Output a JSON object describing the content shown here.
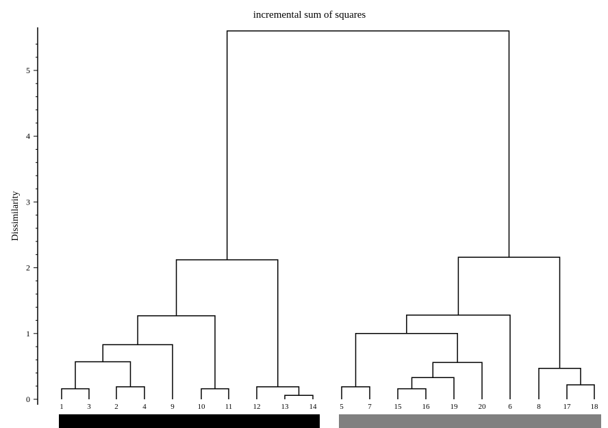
{
  "chart_data": {
    "type": "dendrogram",
    "title": "incremental sum of squares",
    "ylabel": "Dissimilarity",
    "xlabel": "",
    "ylim": [
      0,
      5.6
    ],
    "y_ticks": [
      0,
      1,
      2,
      3,
      4,
      5
    ],
    "grid": false,
    "leaf_order": [
      "1",
      "3",
      "2",
      "4",
      "9",
      "10",
      "11",
      "12",
      "13",
      "14",
      "5",
      "7",
      "15",
      "16",
      "19",
      "20",
      "6",
      "8",
      "17",
      "18"
    ],
    "merges": [
      {
        "id": "A",
        "children": [
          "1",
          "3"
        ],
        "height": 0.16
      },
      {
        "id": "B",
        "children": [
          "2",
          "4"
        ],
        "height": 0.19
      },
      {
        "id": "C",
        "children": [
          "10",
          "11"
        ],
        "height": 0.16
      },
      {
        "id": "D",
        "children": [
          "13",
          "14"
        ],
        "height": 0.06
      },
      {
        "id": "E",
        "children": [
          "12",
          "D"
        ],
        "height": 0.19
      },
      {
        "id": "F",
        "children": [
          "A",
          "B"
        ],
        "height": 0.57
      },
      {
        "id": "G",
        "children": [
          "F",
          "9"
        ],
        "height": 0.83
      },
      {
        "id": "H",
        "children": [
          "G",
          "C"
        ],
        "height": 1.27
      },
      {
        "id": "I",
        "children": [
          "H",
          "E"
        ],
        "height": 2.12
      },
      {
        "id": "J",
        "children": [
          "5",
          "7"
        ],
        "height": 0.19
      },
      {
        "id": "K",
        "children": [
          "15",
          "16"
        ],
        "height": 0.16
      },
      {
        "id": "L",
        "children": [
          "K",
          "19"
        ],
        "height": 0.33
      },
      {
        "id": "M",
        "children": [
          "L",
          "20"
        ],
        "height": 0.56
      },
      {
        "id": "N",
        "children": [
          "J",
          "M"
        ],
        "height": 1.0
      },
      {
        "id": "O",
        "children": [
          "N",
          "6"
        ],
        "height": 1.28
      },
      {
        "id": "P",
        "children": [
          "17",
          "18"
        ],
        "height": 0.22
      },
      {
        "id": "Q",
        "children": [
          "8",
          "P"
        ],
        "height": 0.47
      },
      {
        "id": "R",
        "children": [
          "O",
          "Q"
        ],
        "height": 2.16
      },
      {
        "id": "S",
        "children": [
          "I",
          "R"
        ],
        "height": 5.6
      }
    ],
    "clusters": [
      {
        "members": [
          "1",
          "3",
          "2",
          "4",
          "9",
          "10",
          "11",
          "12",
          "13",
          "14"
        ],
        "color": "#000000"
      },
      {
        "members": [
          "5",
          "7",
          "15",
          "16",
          "19",
          "20",
          "6",
          "8",
          "17",
          "18"
        ],
        "color": "#808080"
      }
    ]
  }
}
